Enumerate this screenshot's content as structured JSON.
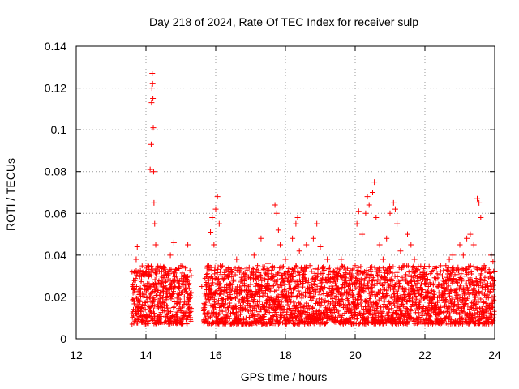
{
  "chart_data": {
    "type": "scatter",
    "title": "Day 218 of 2024, Rate Of TEC Index for receiver sulp",
    "xlabel": "GPS time / hours",
    "ylabel": "ROTI / TECUs",
    "xlim": [
      12,
      24
    ],
    "ylim": [
      0,
      0.14
    ],
    "xticks": [
      12,
      14,
      16,
      18,
      20,
      22,
      24
    ],
    "xtick_labels": [
      "12",
      "14",
      "16",
      "18",
      "20",
      "22",
      "24"
    ],
    "yticks": [
      0,
      0.02,
      0.04,
      0.06,
      0.08,
      0.1,
      0.12,
      0.14
    ],
    "ytick_labels": [
      "0",
      "0.02",
      "0.04",
      "0.06",
      "0.08",
      "0.1",
      "0.12",
      "0.14"
    ],
    "grid": true,
    "marker": "+",
    "series": [
      {
        "name": "ROTI",
        "color": "#ff0000",
        "points": [
          [
            13.65,
            0.018
          ],
          [
            13.7,
            0.028
          ],
          [
            13.72,
            0.038
          ],
          [
            13.75,
            0.044
          ],
          [
            13.8,
            0.012
          ],
          [
            13.85,
            0.022
          ],
          [
            13.9,
            0.031
          ],
          [
            13.95,
            0.016
          ],
          [
            14.0,
            0.025
          ],
          [
            14.05,
            0.035
          ],
          [
            14.1,
            0.02
          ],
          [
            14.12,
            0.081
          ],
          [
            14.15,
            0.093
          ],
          [
            14.16,
            0.113
          ],
          [
            14.17,
            0.12
          ],
          [
            14.18,
            0.127
          ],
          [
            14.19,
            0.122
          ],
          [
            14.2,
            0.115
          ],
          [
            14.21,
            0.101
          ],
          [
            14.22,
            0.08
          ],
          [
            14.23,
            0.065
          ],
          [
            14.25,
            0.055
          ],
          [
            14.28,
            0.045
          ],
          [
            14.3,
            0.03
          ],
          [
            14.35,
            0.018
          ],
          [
            14.4,
            0.026
          ],
          [
            14.5,
            0.034
          ],
          [
            14.6,
            0.022
          ],
          [
            14.7,
            0.04
          ],
          [
            14.8,
            0.046
          ],
          [
            14.9,
            0.028
          ],
          [
            15.0,
            0.035
          ],
          [
            15.1,
            0.02
          ],
          [
            15.2,
            0.045
          ],
          [
            15.25,
            0.015
          ],
          [
            15.6,
            0.025
          ],
          [
            15.7,
            0.02
          ],
          [
            15.8,
            0.035
          ],
          [
            15.85,
            0.051
          ],
          [
            15.9,
            0.058
          ],
          [
            15.95,
            0.045
          ],
          [
            16.0,
            0.062
          ],
          [
            16.05,
            0.068
          ],
          [
            16.1,
            0.055
          ],
          [
            16.15,
            0.03
          ],
          [
            16.2,
            0.018
          ],
          [
            16.3,
            0.033
          ],
          [
            16.5,
            0.028
          ],
          [
            16.6,
            0.038
          ],
          [
            16.7,
            0.022
          ],
          [
            16.8,
            0.031
          ],
          [
            16.9,
            0.016
          ],
          [
            17.0,
            0.026
          ],
          [
            17.1,
            0.04
          ],
          [
            17.2,
            0.035
          ],
          [
            17.3,
            0.048
          ],
          [
            17.4,
            0.025
          ],
          [
            17.5,
            0.036
          ],
          [
            17.6,
            0.019
          ],
          [
            17.7,
            0.064
          ],
          [
            17.75,
            0.06
          ],
          [
            17.8,
            0.052
          ],
          [
            17.85,
            0.045
          ],
          [
            17.9,
            0.03
          ],
          [
            18.0,
            0.038
          ],
          [
            18.1,
            0.026
          ],
          [
            18.2,
            0.048
          ],
          [
            18.3,
            0.055
          ],
          [
            18.35,
            0.058
          ],
          [
            18.4,
            0.042
          ],
          [
            18.5,
            0.03
          ],
          [
            18.6,
            0.045
          ],
          [
            18.7,
            0.035
          ],
          [
            18.8,
            0.048
          ],
          [
            18.9,
            0.055
          ],
          [
            19.0,
            0.044
          ],
          [
            19.1,
            0.028
          ],
          [
            19.2,
            0.038
          ],
          [
            19.3,
            0.02
          ],
          [
            19.4,
            0.032
          ],
          [
            19.5,
            0.024
          ],
          [
            19.6,
            0.038
          ],
          [
            19.7,
            0.026
          ],
          [
            19.8,
            0.018
          ],
          [
            19.9,
            0.03
          ],
          [
            20.0,
            0.035
          ],
          [
            20.05,
            0.055
          ],
          [
            20.1,
            0.061
          ],
          [
            20.2,
            0.05
          ],
          [
            20.3,
            0.06
          ],
          [
            20.35,
            0.068
          ],
          [
            20.4,
            0.064
          ],
          [
            20.5,
            0.07
          ],
          [
            20.55,
            0.075
          ],
          [
            20.6,
            0.058
          ],
          [
            20.7,
            0.045
          ],
          [
            20.8,
            0.038
          ],
          [
            20.9,
            0.048
          ],
          [
            21.0,
            0.06
          ],
          [
            21.1,
            0.065
          ],
          [
            21.15,
            0.062
          ],
          [
            21.2,
            0.055
          ],
          [
            21.3,
            0.042
          ],
          [
            21.4,
            0.035
          ],
          [
            21.5,
            0.05
          ],
          [
            21.6,
            0.045
          ],
          [
            21.7,
            0.038
          ],
          [
            21.8,
            0.028
          ],
          [
            21.9,
            0.02
          ],
          [
            22.0,
            0.03
          ],
          [
            22.1,
            0.025
          ],
          [
            22.2,
            0.018
          ],
          [
            22.3,
            0.028
          ],
          [
            22.4,
            0.022
          ],
          [
            22.5,
            0.03
          ],
          [
            22.6,
            0.035
          ],
          [
            22.7,
            0.038
          ],
          [
            22.8,
            0.04
          ],
          [
            22.9,
            0.033
          ],
          [
            23.0,
            0.045
          ],
          [
            23.1,
            0.04
          ],
          [
            23.2,
            0.048
          ],
          [
            23.3,
            0.05
          ],
          [
            23.4,
            0.045
          ],
          [
            23.5,
            0.067
          ],
          [
            23.55,
            0.065
          ],
          [
            23.6,
            0.058
          ],
          [
            23.7,
            0.035
          ],
          [
            23.8,
            0.025
          ],
          [
            23.9,
            0.04
          ],
          [
            23.95,
            0.037
          ],
          [
            24.0,
            0.032
          ]
        ]
      }
    ]
  }
}
